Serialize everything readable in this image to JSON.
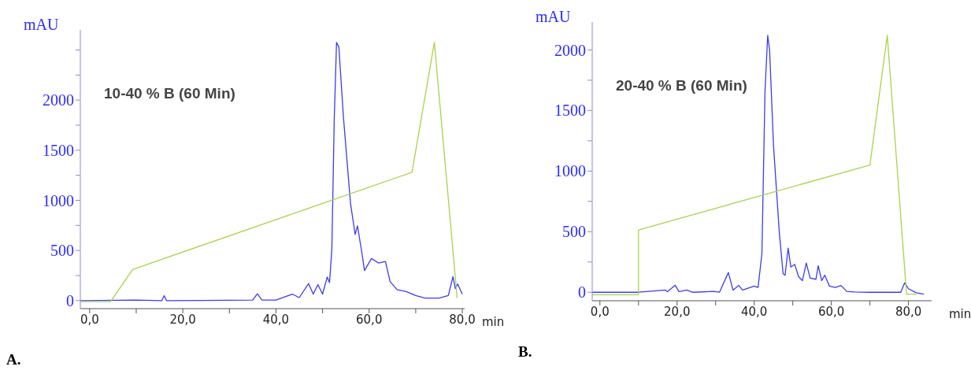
{
  "chart_data": [
    {
      "type": "line",
      "xlabel": "min",
      "ylabel": "mAU",
      "annotations": [
        "10-40 % B (60 Min)",
        "A."
      ],
      "xlim": [
        -2,
        80.5
      ],
      "ylim": [
        -80,
        2700
      ],
      "xticks": [
        {
          "value": 0,
          "label": "0,0"
        },
        {
          "value": 10,
          "label": null
        },
        {
          "value": 20,
          "label": "20,0"
        },
        {
          "value": 30,
          "label": null
        },
        {
          "value": 40,
          "label": "40,0"
        },
        {
          "value": 50,
          "label": null
        },
        {
          "value": 60,
          "label": "60,0"
        },
        {
          "value": 70,
          "label": null
        },
        {
          "value": 80,
          "label": "80,0"
        }
      ],
      "yticks": [
        0,
        {
          "value": 250,
          "label": null
        },
        500,
        {
          "value": 750,
          "label": null
        },
        1000,
        {
          "value": 1250,
          "label": null
        },
        1500,
        {
          "value": 1750,
          "label": null
        },
        2000,
        {
          "value": 2250,
          "label": null
        },
        {
          "value": 2500,
          "label": null
        }
      ],
      "series": [
        {
          "color": "#3b3bf5",
          "x": [
            -2,
            10,
            15.5,
            16,
            16.5,
            35,
            36,
            37,
            40,
            43.5,
            45,
            47,
            48,
            49,
            50,
            51,
            51.5,
            52,
            52.5,
            53,
            53.5,
            54.5,
            56,
            57,
            57.5,
            58.5,
            59,
            60.5,
            62,
            63.5,
            64.5,
            66,
            68,
            70,
            72,
            75,
            77,
            78,
            78.5,
            79,
            80
          ],
          "values": [
            0,
            5,
            0,
            50,
            0,
            5,
            68,
            5,
            5,
            65,
            30,
            170,
            65,
            160,
            65,
            235,
            180,
            520,
            1790,
            2575,
            2530,
            1820,
            970,
            660,
            745,
            460,
            300,
            420,
            375,
            390,
            190,
            110,
            90,
            50,
            25,
            25,
            50,
            240,
            120,
            165,
            65
          ]
        },
        {
          "color": "#a8d44a",
          "x": [
            -2,
            4.5,
            9.2,
            69.2,
            74,
            78.9
          ],
          "values": [
            -10,
            -10,
            310,
            1280,
            2575,
            25
          ]
        }
      ]
    },
    {
      "type": "line",
      "xlabel": "min",
      "ylabel": "mAU",
      "annotations": [
        "20-40 % B (60 Min)",
        "B."
      ],
      "xlim": [
        -2,
        86
      ],
      "ylim": [
        -70,
        2230
      ],
      "xticks": [
        {
          "value": 0,
          "label": "0,0"
        },
        {
          "value": 10,
          "label": null
        },
        {
          "value": 20,
          "label": "20,0"
        },
        {
          "value": 30,
          "label": null
        },
        {
          "value": 40,
          "label": "40,0"
        },
        {
          "value": 50,
          "label": null
        },
        {
          "value": 60,
          "label": "60,0"
        },
        {
          "value": 70,
          "label": null
        },
        {
          "value": 80,
          "label": "80,0"
        }
      ],
      "yticks": [
        0,
        {
          "value": 250,
          "label": null
        },
        500,
        {
          "value": 750,
          "label": null
        },
        1000,
        {
          "value": 1250,
          "label": null
        },
        1500,
        {
          "value": 1750,
          "label": null
        },
        2000
      ],
      "series": [
        {
          "color": "#3b3bf5",
          "x": [
            -2,
            10,
            17,
            17.5,
            19.5,
            20.5,
            22.5,
            24,
            29.5,
            31,
            33.3,
            34.5,
            36,
            37,
            40,
            41,
            42,
            42.8,
            43.5,
            44,
            45,
            46.5,
            47.5,
            48,
            48.8,
            49.5,
            50.5,
            51.5,
            52.5,
            53.5,
            54.5,
            56,
            56.6,
            57.5,
            58.3,
            59.5,
            61,
            62.5,
            64,
            66,
            70,
            78,
            79,
            80,
            82,
            84
          ],
          "values": [
            0,
            0,
            18,
            5,
            58,
            5,
            18,
            0,
            7,
            0,
            163,
            18,
            56,
            18,
            51,
            40,
            320,
            1660,
            2120,
            1995,
            1214,
            498,
            152,
            141,
            364,
            208,
            230,
            130,
            96,
            241,
            118,
            107,
            219,
            96,
            141,
            51,
            40,
            56,
            7,
            2,
            0,
            0,
            78,
            29,
            -4,
            -16
          ]
        },
        {
          "color": "#a8d44a",
          "x": [
            -2,
            10,
            10,
            70,
            74.5,
            79.5,
            82
          ],
          "values": [
            -20,
            -20,
            514,
            1050,
            2120,
            -16,
            -16
          ]
        }
      ]
    }
  ]
}
